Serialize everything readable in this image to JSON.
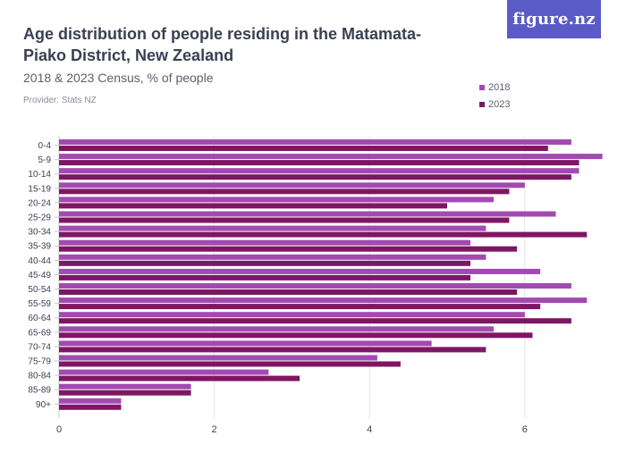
{
  "header": {
    "title": "Age distribution of people residing in the Matamata-Piako District, New Zealand",
    "subtitle": "2018 & 2023 Census, % of people",
    "provider": "Provider: Stats NZ",
    "logo": "figure.nz"
  },
  "colors": {
    "s2018": "#a24ab1",
    "s2023": "#7e1763",
    "grid": "#e3e3e8",
    "axis": "#c9c9d0",
    "text": "#3b3f53"
  },
  "chart_data": {
    "type": "bar",
    "orientation": "horizontal",
    "categories": [
      "0-4",
      "5-9",
      "10-14",
      "15-19",
      "20-24",
      "25-29",
      "30-34",
      "35-39",
      "40-44",
      "45-49",
      "50-54",
      "55-59",
      "60-64",
      "65-69",
      "70-74",
      "75-79",
      "80-84",
      "85-89",
      "90+"
    ],
    "series": [
      {
        "name": "2018",
        "values": [
          6.6,
          7.0,
          6.7,
          6.0,
          5.6,
          6.4,
          5.5,
          5.3,
          5.5,
          6.2,
          6.6,
          6.8,
          6.0,
          5.6,
          4.8,
          4.1,
          2.7,
          1.7,
          0.8
        ]
      },
      {
        "name": "2023",
        "values": [
          6.3,
          6.7,
          6.6,
          5.8,
          5.0,
          5.8,
          6.8,
          5.9,
          5.3,
          5.3,
          5.9,
          6.2,
          6.6,
          6.1,
          5.5,
          4.4,
          3.1,
          1.7,
          0.8
        ]
      }
    ],
    "xlim": [
      0,
      7
    ],
    "xticks": [
      0,
      2,
      4,
      6
    ],
    "grid": true,
    "legend": "top-right"
  }
}
